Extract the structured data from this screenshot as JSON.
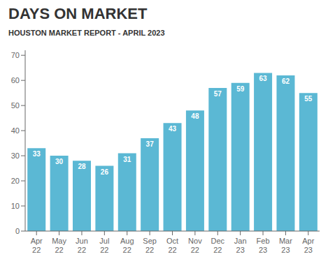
{
  "chart_data": {
    "type": "bar",
    "title": "DAYS ON MARKET",
    "subtitle": "HOUSTON MARKET REPORT - APRIL 2023",
    "categories": [
      "Apr\n22",
      "May\n22",
      "Jun\n22",
      "Jul\n22",
      "Aug\n22",
      "Sep\n22",
      "Oct\n22",
      "Nov\n22",
      "Dec\n22",
      "Jan\n23",
      "Feb\n23",
      "Mar\n23",
      "Apr\n23"
    ],
    "values": [
      33,
      30,
      28,
      26,
      31,
      37,
      43,
      48,
      57,
      59,
      63,
      62,
      55
    ],
    "color": "#5BB8D4",
    "ylim": [
      0,
      72
    ],
    "yticks": [
      0,
      10,
      20,
      30,
      40,
      50,
      60,
      70
    ],
    "grid": false,
    "data_labels": true
  }
}
